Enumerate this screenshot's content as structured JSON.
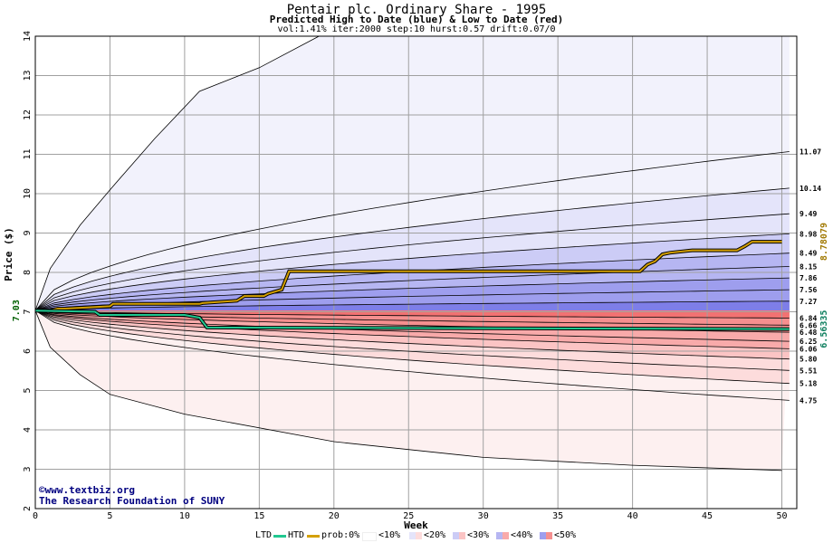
{
  "header": {
    "title": "Pentair plc. Ordinary Share - 1995",
    "subtitle": "Predicted High to Date (blue) &  Low to Date (red)",
    "params": "vol:1.41% iter:2000 step:10 hurst:0.57 drift:0.07/0"
  },
  "credits": {
    "site": "©www.textbiz.org",
    "org": "The Research Foundation of SUNY"
  },
  "legend": {
    "ltd": "LTD",
    "htd": "HTD",
    "prob": "prob:0%",
    "p10": "<10%",
    "p20": "<20%",
    "p30": "<30%",
    "p40": "<40%",
    "p50": "<50%"
  },
  "colors": {
    "htd_line": "#d4a000",
    "ltd_line": "#20c890",
    "grid": "#a0a0a0",
    "blue_bands": [
      "#f2f2fc",
      "#e4e4fa",
      "#ccccf6",
      "#b6b6f2",
      "#9e9eee",
      "#7e7ee8"
    ],
    "red_bands": [
      "#fdf0f0",
      "#fddcdc",
      "#fbc4c4",
      "#f8aaaa",
      "#f58f8f",
      "#f27272"
    ],
    "start_label": "#006000",
    "htd_label": "#a07800",
    "ltd_label": "#108060"
  },
  "chart_data": {
    "type": "line",
    "title": "Pentair plc. Ordinary Share - 1995",
    "xlabel": "Week",
    "ylabel": "Price ($)",
    "xlim": [
      0,
      51
    ],
    "ylim": [
      2,
      14
    ],
    "x_ticks": [
      0,
      5,
      10,
      15,
      20,
      25,
      30,
      35,
      40,
      45,
      50
    ],
    "y_ticks": [
      2,
      3,
      4,
      5,
      6,
      7,
      8,
      9,
      10,
      11,
      12,
      13,
      14
    ],
    "grid": true,
    "start_price": 7.03,
    "start_price_label": "7.03",
    "upper_quantiles": {
      "end_values": [
        11.07,
        10.14,
        9.49,
        8.98,
        8.49,
        8.15,
        7.86,
        7.56,
        7.27
      ],
      "labels": [
        "11.07",
        "10.14",
        "9.49",
        "8.98",
        "8.49",
        "8.15",
        "7.86",
        "7.56",
        "7.27"
      ]
    },
    "upper_envelope": {
      "x": [
        0,
        1,
        3,
        5,
        8,
        11,
        15,
        19
      ],
      "y": [
        7.03,
        8.1,
        9.2,
        10.1,
        11.4,
        12.6,
        13.2,
        14.0
      ]
    },
    "lower_quantiles": {
      "end_values": [
        6.84,
        6.66,
        6.48,
        6.25,
        6.06,
        5.8,
        5.51,
        5.18,
        4.75
      ],
      "labels": [
        "6.84",
        "6.66",
        "6.48",
        "6.25",
        "6.06",
        "5.80",
        "5.51",
        "5.18",
        "4.75"
      ]
    },
    "lower_envelope": {
      "x": [
        0,
        1,
        3,
        5,
        10,
        20,
        30,
        40,
        50
      ],
      "y": [
        7.03,
        6.1,
        5.4,
        4.9,
        4.4,
        3.7,
        3.3,
        3.1,
        2.97
      ]
    },
    "series": [
      {
        "name": "HTD",
        "x": [
          0,
          1,
          1.5,
          2,
          5,
          5.2,
          11,
          11.2,
          13.5,
          14,
          15.3,
          15.6,
          16.5,
          17,
          17.3,
          40.5,
          41,
          41.5,
          42,
          42.5,
          44,
          47,
          47.5,
          48,
          50
        ],
        "y": [
          7.03,
          7.03,
          7.08,
          7.08,
          7.14,
          7.2,
          7.2,
          7.22,
          7.28,
          7.4,
          7.4,
          7.46,
          7.56,
          8.03,
          8.03,
          8.03,
          8.2,
          8.28,
          8.46,
          8.5,
          8.56,
          8.56,
          8.66,
          8.78,
          8.78
        ],
        "end_label": "8.78079"
      },
      {
        "name": "LTD",
        "x": [
          0,
          4,
          4.3,
          10,
          11,
          11.5,
          50.5
        ],
        "y": [
          7.03,
          7.0,
          6.92,
          6.92,
          6.85,
          6.6,
          6.56
        ],
        "end_label": "6.56335"
      }
    ]
  }
}
